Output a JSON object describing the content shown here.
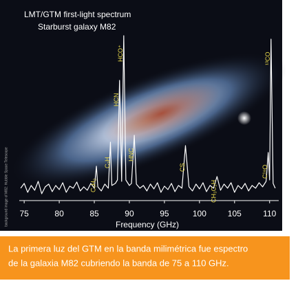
{
  "chart_data": {
    "type": "line",
    "title": "LMT/GTM first-light spectrum",
    "subtitle": "Starburst galaxy M82",
    "x_label": "Frequency (GHz)",
    "credit": "background image of M82: Hubble Space Telescope",
    "xlim": [
      74.3,
      111.3
    ],
    "xticks": [
      75,
      80,
      85,
      90,
      95,
      100,
      105,
      110
    ],
    "ylim": [
      0,
      250
    ],
    "color": "#ffffff",
    "label_color": "#e8d84a",
    "x": [
      74.5,
      75,
      75.5,
      76,
      76.5,
      77,
      77.5,
      78,
      78.5,
      79,
      79.5,
      80,
      80.5,
      81,
      81.5,
      82,
      82.5,
      83,
      83.5,
      84,
      84.5,
      85,
      85.3,
      85.5,
      86,
      86.5,
      87,
      87.3,
      87.5,
      88,
      88.3,
      88.6,
      88.9,
      89.2,
      89.5,
      90,
      90.3,
      90.7,
      91,
      91.5,
      92,
      92.5,
      93,
      93.5,
      94,
      94.5,
      95,
      95.5,
      96,
      96.5,
      97,
      97.5,
      98,
      98.5,
      99,
      99.5,
      100,
      100.5,
      101,
      101.5,
      102,
      102.5,
      103,
      103.5,
      104,
      104.5,
      105,
      105.5,
      106,
      106.5,
      107,
      107.5,
      108,
      108.5,
      109,
      109.5,
      109.8,
      110,
      110.2,
      110.5,
      110.8
    ],
    "values": [
      18,
      25,
      12,
      22,
      15,
      28,
      10,
      20,
      24,
      13,
      22,
      16,
      26,
      12,
      21,
      18,
      27,
      14,
      20,
      15,
      25,
      18,
      50,
      20,
      14,
      24,
      18,
      85,
      22,
      25,
      30,
      175,
      28,
      240,
      30,
      22,
      25,
      95,
      24,
      18,
      22,
      14,
      24,
      17,
      26,
      12,
      21,
      16,
      25,
      13,
      22,
      18,
      80,
      20,
      14,
      24,
      17,
      26,
      13,
      22,
      18,
      35,
      15,
      24,
      18,
      26,
      12,
      22,
      17,
      25,
      14,
      22,
      18,
      26,
      20,
      28,
      70,
      30,
      235,
      25,
      18
    ],
    "annotations": [
      {
        "text": "C₃H₂",
        "x": 85.3
      },
      {
        "text": "C₂H",
        "x": 87.3
      },
      {
        "text": "HCN",
        "x": 88.6
      },
      {
        "text": "HCO⁺",
        "x": 89.2
      },
      {
        "text": "HNC",
        "x": 90.7
      },
      {
        "text": "CS",
        "x": 98.0
      },
      {
        "text": "CH₃C₂H",
        "x": 102.5
      },
      {
        "text": "C¹⁸O",
        "x": 109.8
      },
      {
        "text": "¹³CO",
        "x": 110.2
      }
    ]
  },
  "caption": [
    "La primera luz del GTM en la banda milimétrica fue espectro",
    "de la galaxia M82 cubriendo la banda de 75 a 110 GHz."
  ]
}
